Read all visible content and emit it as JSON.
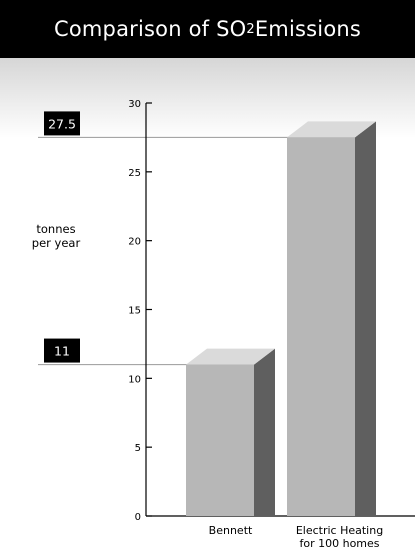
{
  "chart_data": {
    "type": "bar",
    "title_prefix": "Comparison of SO",
    "title_sub": "2",
    "title_suffix": " Emissions",
    "ylabel": [
      "tonnes",
      "per year"
    ],
    "categories": [
      [
        "Bennett"
      ],
      [
        "Electric Heating",
        "for 100 homes"
      ]
    ],
    "values": [
      11,
      27.5
    ],
    "ylim": [
      0,
      30
    ],
    "yticks": [
      0,
      5,
      10,
      15,
      20,
      25,
      30
    ],
    "value_callouts": [
      "11",
      "27.5"
    ],
    "colors": {
      "bar_front": "#b7b7b7",
      "bar_side": "#5f5f5f",
      "bar_top": "#dadada",
      "background_top": "#d6d6d6",
      "callout_bg": "#000000"
    }
  }
}
